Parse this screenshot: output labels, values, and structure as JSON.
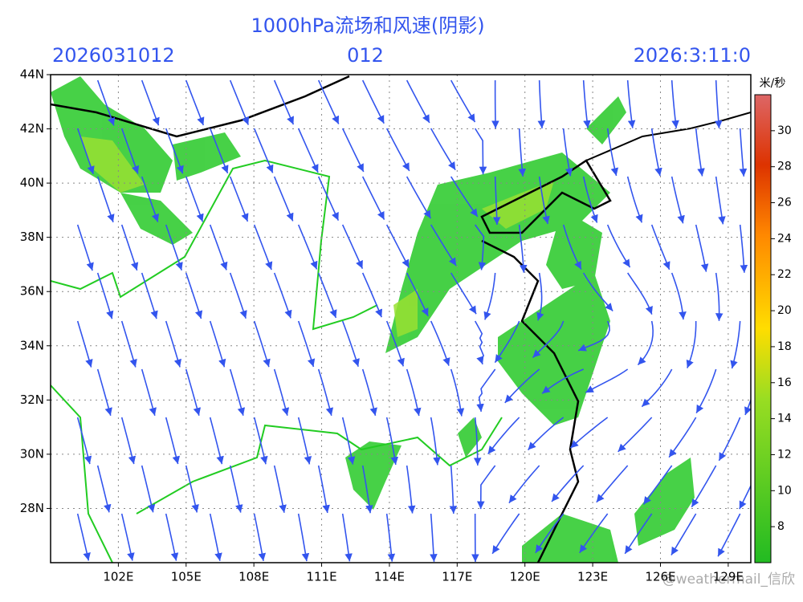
{
  "header": {
    "title": "1000hPa流场和风速(阴影)",
    "run": "2026031012",
    "lead": "012",
    "valid": "2026:3:11:0"
  },
  "map": {
    "lonlim": [
      99,
      130
    ],
    "latlim": [
      26,
      44
    ],
    "lonticks": [
      {
        "value": 102,
        "label": "102E"
      },
      {
        "value": 105,
        "label": "105E"
      },
      {
        "value": 108,
        "label": "108E"
      },
      {
        "value": 111,
        "label": "111E"
      },
      {
        "value": 114,
        "label": "114E"
      },
      {
        "value": 117,
        "label": "117E"
      },
      {
        "value": 120,
        "label": "120E"
      },
      {
        "value": 123,
        "label": "123E"
      },
      {
        "value": 126,
        "label": "126E"
      },
      {
        "value": 129,
        "label": "129E"
      }
    ],
    "latticks": [
      {
        "value": 28,
        "label": "28N"
      },
      {
        "value": 30,
        "label": "30N"
      },
      {
        "value": 32,
        "label": "32N"
      },
      {
        "value": 34,
        "label": "34N"
      },
      {
        "value": 36,
        "label": "36N"
      },
      {
        "value": 38,
        "label": "38N"
      },
      {
        "value": 40,
        "label": "40N"
      },
      {
        "value": 42,
        "label": "42N"
      },
      {
        "value": 44,
        "label": "44N"
      }
    ]
  },
  "colorbar": {
    "unit": "米/秒",
    "clim": [
      6,
      32
    ],
    "ticks": [
      8,
      10,
      12,
      14,
      16,
      18,
      20,
      22,
      24,
      26,
      28,
      30
    ]
  },
  "watermark": "@weathermail_信欣"
}
